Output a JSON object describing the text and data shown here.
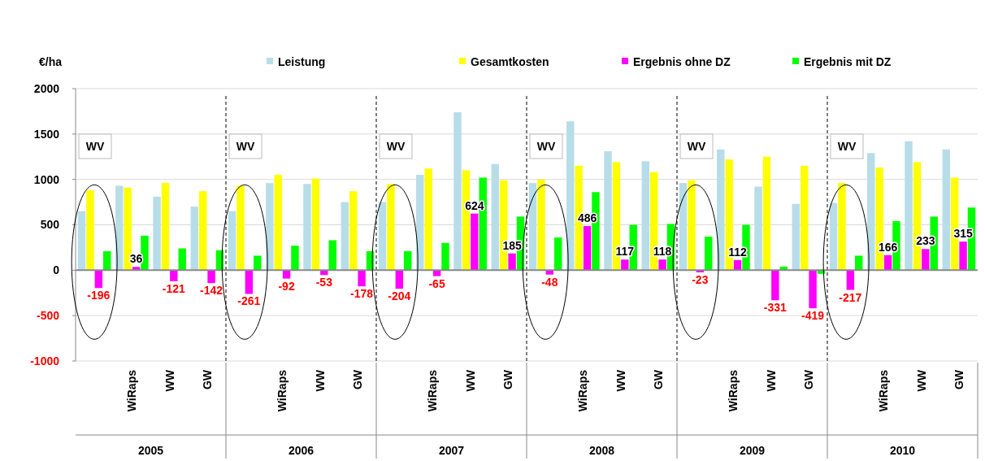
{
  "chart_data": {
    "type": "bar",
    "ylabel": "€/ha",
    "categories": [
      null,
      "WiRaps",
      "WW",
      "GW",
      null,
      "WiRaps",
      "WW",
      "GW",
      null,
      "WiRaps",
      "WW",
      "GW",
      null,
      "WiRaps",
      "WW",
      "GW",
      null,
      "WiRaps",
      "WW",
      "GW",
      null,
      "WiRaps",
      "WW",
      "GW"
    ],
    "series": [
      {
        "name": "Leistung",
        "color": "#b7dde8",
        "values": [
          650,
          930,
          810,
          700,
          650,
          960,
          950,
          750,
          750,
          1050,
          1740,
          1170,
          960,
          1640,
          1310,
          1200,
          960,
          1330,
          920,
          730,
          740,
          1290,
          1420,
          1330
        ]
      },
      {
        "name": "Gesamtkosten",
        "color": "#ffff00",
        "values": [
          880,
          910,
          960,
          870,
          930,
          1050,
          1010,
          870,
          950,
          1120,
          1100,
          990,
          1000,
          1150,
          1190,
          1080,
          990,
          1220,
          1250,
          1150,
          960,
          1130,
          1190,
          1020
        ]
      },
      {
        "name": "Ergebnis ohne DZ",
        "color": "#ff00ff",
        "values": [
          -196,
          36,
          -121,
          -142,
          -261,
          -92,
          -53,
          -178,
          -204,
          -65,
          624,
          185,
          -48,
          486,
          117,
          118,
          -23,
          112,
          -331,
          -419,
          -217,
          166,
          233,
          315
        ],
        "value_labels": [
          "-196",
          "36",
          "-121",
          "-142",
          "-261",
          "-92",
          "-53",
          "-178",
          "-204",
          "-65",
          "624",
          "185",
          "-48",
          "486",
          "117",
          "118",
          "-23",
          "112",
          "-331",
          "-419",
          "-217",
          "166",
          "233",
          "315"
        ]
      },
      {
        "name": "Ergebnis mit DZ",
        "color": "#00ff00",
        "values": [
          210,
          380,
          240,
          220,
          160,
          270,
          330,
          210,
          210,
          300,
          1020,
          590,
          360,
          860,
          500,
          510,
          370,
          500,
          40,
          -40,
          160,
          540,
          590,
          690
        ]
      }
    ],
    "ylim": [
      -1000,
      2000
    ],
    "yticks": [
      -1000,
      -500,
      0,
      500,
      1000,
      1500,
      2000
    ],
    "grid": "y",
    "legend": "top",
    "annotations": [
      "WV",
      "WV",
      "WV",
      "WV",
      "WV",
      "WV",
      "2005",
      "2006",
      "2007",
      "2008",
      "2009",
      "2010"
    ]
  }
}
